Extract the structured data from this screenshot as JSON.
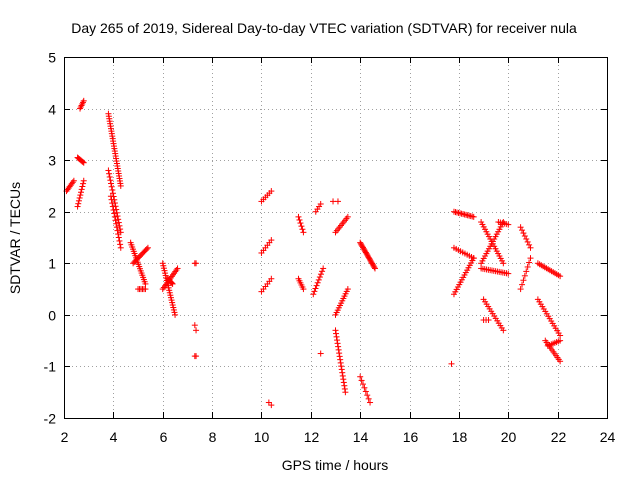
{
  "chart_data": {
    "type": "scatter",
    "title": "Day 265 of 2019, Sidereal Day-to-day VTEC variation (SDTVAR) for receiver nula",
    "xlabel": "GPS time / hours",
    "ylabel": "SDTVAR / TECUs",
    "xlim": [
      2,
      24
    ],
    "ylim": [
      -2,
      5
    ],
    "xticks": [
      "2",
      "4",
      "6",
      "8",
      "10",
      "12",
      "14",
      "16",
      "18",
      "20",
      "22",
      "24"
    ],
    "yticks": [
      "-2",
      "-1",
      "0",
      "1",
      "2",
      "3",
      "4",
      "5"
    ],
    "grid": true,
    "marker": "+",
    "series_color": "#ff0000",
    "segments": [
      {
        "x0": 2.1,
        "x1": 2.4,
        "y0": 2.4,
        "y1": 2.6,
        "n": 8
      },
      {
        "x0": 2.55,
        "x1": 2.8,
        "y0": 2.1,
        "y1": 2.6,
        "n": 10
      },
      {
        "x0": 2.55,
        "x1": 2.8,
        "y0": 3.05,
        "y1": 2.95,
        "n": 8
      },
      {
        "x0": 2.65,
        "x1": 2.8,
        "y0": 4.0,
        "y1": 4.15,
        "n": 6
      },
      {
        "x0": 3.8,
        "x1": 4.3,
        "y0": 3.9,
        "y1": 2.5,
        "n": 30
      },
      {
        "x0": 3.8,
        "x1": 4.3,
        "y0": 2.8,
        "y1": 1.6,
        "n": 20
      },
      {
        "x0": 3.9,
        "x1": 4.3,
        "y0": 2.3,
        "y1": 1.3,
        "n": 16
      },
      {
        "x0": 4.7,
        "x1": 5.3,
        "y0": 1.4,
        "y1": 0.6,
        "n": 20
      },
      {
        "x0": 4.8,
        "x1": 5.4,
        "y0": 1.0,
        "y1": 1.3,
        "n": 14
      },
      {
        "x0": 5.0,
        "x1": 5.3,
        "y0": 0.5,
        "y1": 0.5,
        "n": 6
      },
      {
        "x0": 6.0,
        "x1": 6.5,
        "y0": 1.0,
        "y1": 0.0,
        "n": 22
      },
      {
        "x0": 6.0,
        "x1": 6.6,
        "y0": 0.5,
        "y1": 0.9,
        "n": 14
      },
      {
        "x0": 6.2,
        "x1": 6.4,
        "y0": 0.7,
        "y1": 0.6,
        "n": 8
      },
      {
        "x0": 7.3,
        "x1": 7.35,
        "y0": 1.0,
        "y1": 1.0,
        "n": 2
      },
      {
        "x0": 7.3,
        "x1": 7.35,
        "y0": -0.2,
        "y1": -0.3,
        "n": 2
      },
      {
        "x0": 7.3,
        "x1": 7.35,
        "y0": -0.8,
        "y1": -0.8,
        "n": 2
      },
      {
        "x0": 10.0,
        "x1": 10.4,
        "y0": 2.2,
        "y1": 2.4,
        "n": 6
      },
      {
        "x0": 10.0,
        "x1": 10.4,
        "y0": 1.2,
        "y1": 1.45,
        "n": 6
      },
      {
        "x0": 10.0,
        "x1": 10.4,
        "y0": 0.45,
        "y1": 0.7,
        "n": 6
      },
      {
        "x0": 10.3,
        "x1": 10.4,
        "y0": -1.7,
        "y1": -1.75,
        "n": 2
      },
      {
        "x0": 11.5,
        "x1": 11.7,
        "y0": 1.9,
        "y1": 1.6,
        "n": 6
      },
      {
        "x0": 11.5,
        "x1": 11.7,
        "y0": 0.7,
        "y1": 0.5,
        "n": 6
      },
      {
        "x0": 12.1,
        "x1": 12.5,
        "y0": 0.4,
        "y1": 0.9,
        "n": 10
      },
      {
        "x0": 12.2,
        "x1": 12.4,
        "y0": 2.0,
        "y1": 2.15,
        "n": 4
      },
      {
        "x0": 12.4,
        "x1": 12.45,
        "y0": -0.75,
        "y1": -0.75,
        "n": 1
      },
      {
        "x0": 12.9,
        "x1": 13.1,
        "y0": 2.2,
        "y1": 2.2,
        "n": 2
      },
      {
        "x0": 13.0,
        "x1": 13.5,
        "y0": 1.6,
        "y1": 1.9,
        "n": 10
      },
      {
        "x0": 13.0,
        "x1": 13.4,
        "y0": -0.3,
        "y1": -1.5,
        "n": 20
      },
      {
        "x0": 13.0,
        "x1": 13.5,
        "y0": 0.0,
        "y1": 0.5,
        "n": 12
      },
      {
        "x0": 14.0,
        "x1": 14.6,
        "y0": 1.4,
        "y1": 0.9,
        "n": 22
      },
      {
        "x0": 14.0,
        "x1": 14.4,
        "y0": -1.2,
        "y1": -1.7,
        "n": 8
      },
      {
        "x0": 17.7,
        "x1": 17.75,
        "y0": -0.95,
        "y1": -0.95,
        "n": 1
      },
      {
        "x0": 17.8,
        "x1": 18.6,
        "y0": 2.0,
        "y1": 1.9,
        "n": 14
      },
      {
        "x0": 17.8,
        "x1": 18.6,
        "y0": 1.3,
        "y1": 1.1,
        "n": 10
      },
      {
        "x0": 17.8,
        "x1": 18.6,
        "y0": 0.4,
        "y1": 1.1,
        "n": 16
      },
      {
        "x0": 18.9,
        "x1": 19.8,
        "y0": 1.8,
        "y1": 1.0,
        "n": 18
      },
      {
        "x0": 18.9,
        "x1": 19.8,
        "y0": 1.0,
        "y1": 1.8,
        "n": 18
      },
      {
        "x0": 18.9,
        "x1": 20.0,
        "y0": 0.9,
        "y1": 0.8,
        "n": 16
      },
      {
        "x0": 19.0,
        "x1": 19.8,
        "y0": 0.3,
        "y1": -0.3,
        "n": 14
      },
      {
        "x0": 19.6,
        "x1": 20.0,
        "y0": 1.8,
        "y1": 1.75,
        "n": 6
      },
      {
        "x0": 19.0,
        "x1": 19.2,
        "y0": -0.1,
        "y1": -0.1,
        "n": 3
      },
      {
        "x0": 20.5,
        "x1": 20.9,
        "y0": 0.5,
        "y1": 1.1,
        "n": 8
      },
      {
        "x0": 20.5,
        "x1": 20.9,
        "y0": 1.7,
        "y1": 1.3,
        "n": 8
      },
      {
        "x0": 21.2,
        "x1": 22.1,
        "y0": 1.0,
        "y1": 0.75,
        "n": 14
      },
      {
        "x0": 21.2,
        "x1": 22.1,
        "y0": 0.3,
        "y1": -0.4,
        "n": 16
      },
      {
        "x0": 21.5,
        "x1": 22.1,
        "y0": -0.5,
        "y1": -0.9,
        "n": 12
      },
      {
        "x0": 21.6,
        "x1": 22.1,
        "y0": -0.6,
        "y1": -0.5,
        "n": 8
      }
    ]
  }
}
